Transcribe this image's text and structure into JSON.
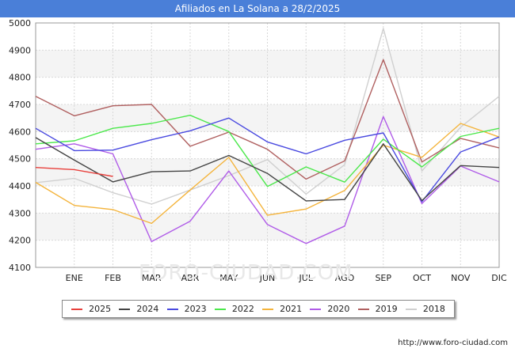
{
  "chart_data": {
    "type": "line",
    "title": "Afiliados en La Solana a 28/2/2025",
    "xlabel": "",
    "ylabel": "",
    "categories": [
      "",
      "ENE",
      "FEB",
      "MAR",
      "ABR",
      "MAY",
      "JUN",
      "JUL",
      "AGO",
      "SEP",
      "OCT",
      "NOV",
      "DIC"
    ],
    "ylim": [
      4100,
      5000
    ],
    "yticks": [
      4100,
      4200,
      4300,
      4400,
      4500,
      4600,
      4700,
      4800,
      4900,
      5000
    ],
    "grid": true,
    "legend_position": "bottom",
    "series": [
      {
        "name": "2025",
        "color": "#e8403c",
        "values": [
          4468,
          4460,
          4435,
          null,
          null,
          null,
          null,
          null,
          null,
          null,
          null,
          null,
          null
        ]
      },
      {
        "name": "2024",
        "color": "#444444",
        "values": [
          4578,
          4495,
          4415,
          4452,
          4455,
          4512,
          4446,
          4345,
          4350,
          4555,
          4346,
          4475,
          4468
        ]
      },
      {
        "name": "2023",
        "color": "#4a4ae0",
        "values": [
          4612,
          4530,
          4532,
          4570,
          4603,
          4650,
          4562,
          4518,
          4568,
          4595,
          4342,
          4525,
          4580
        ]
      },
      {
        "name": "2022",
        "color": "#4ce84c",
        "values": [
          4555,
          4566,
          4612,
          4630,
          4660,
          4600,
          4398,
          4470,
          4414,
          4572,
          4470,
          4582,
          4612
        ]
      },
      {
        "name": "2021",
        "color": "#f4b43c",
        "values": [
          4413,
          4328,
          4313,
          4262,
          4385,
          4505,
          4292,
          4315,
          4383,
          4550,
          4505,
          4630,
          4580
        ]
      },
      {
        "name": "2020",
        "color": "#b05ce8",
        "values": [
          4535,
          4555,
          4518,
          4195,
          4270,
          4455,
          4258,
          4188,
          4252,
          4655,
          4335,
          4473,
          4415
        ]
      },
      {
        "name": "2019",
        "color": "#b06060",
        "values": [
          4730,
          4658,
          4695,
          4700,
          4546,
          4598,
          4535,
          4425,
          4492,
          4865,
          4488,
          4575,
          4540
        ]
      },
      {
        "name": "2018",
        "color": "#d0d0d0",
        "values": [
          4412,
          4428,
          4375,
          4333,
          4385,
          4438,
          4497,
          4370,
          4478,
          4980,
          4455,
          4616,
          4730
        ]
      }
    ]
  },
  "footer": "http://www.foro-ciudad.com",
  "watermark": "FORO-CIUDAD.COM"
}
